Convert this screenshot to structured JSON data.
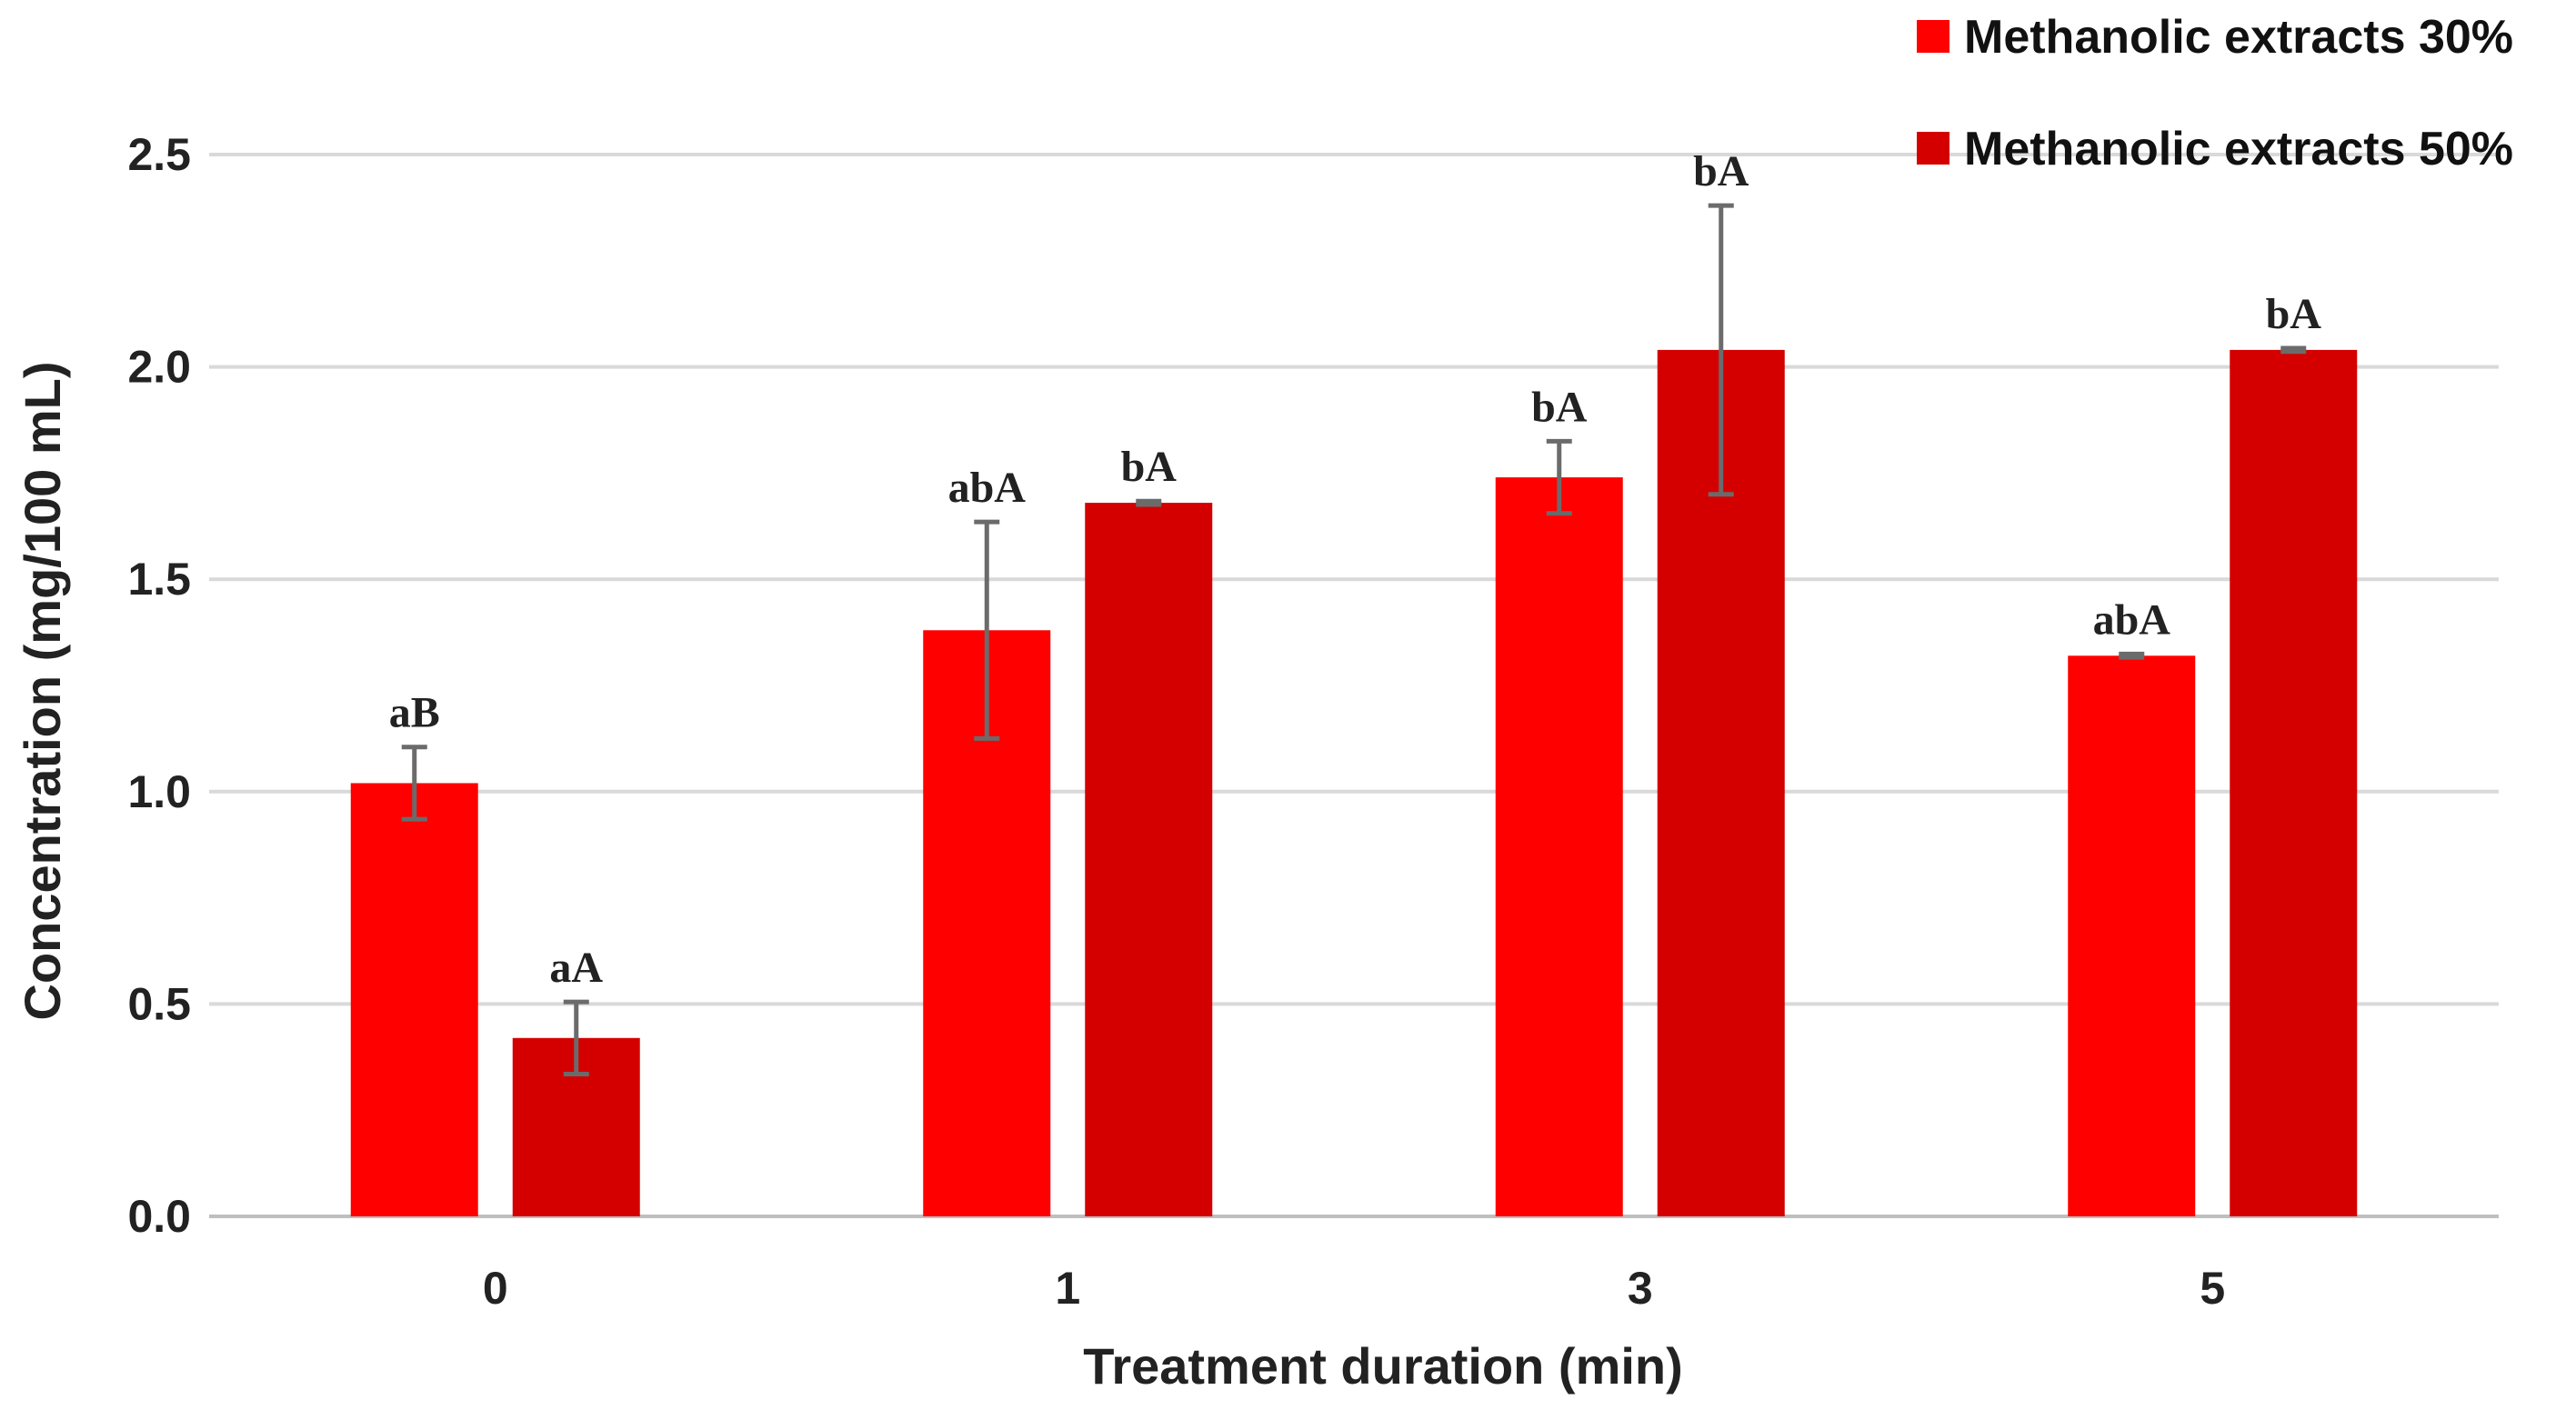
{
  "chart_data": {
    "type": "bar",
    "title": "",
    "xlabel": "Treatment duration (min)",
    "ylabel": "Concentration (mg/100 mL)",
    "categories": [
      "0",
      "1",
      "3",
      "5"
    ],
    "ylim": [
      0,
      2.5
    ],
    "yticks": [
      "0.0",
      "0.5",
      "1.0",
      "1.5",
      "2.0",
      "2.5"
    ],
    "grid": true,
    "legend_position": "top-right",
    "series": [
      {
        "name": "Methanolic extracts 30%",
        "color": "#ff0000",
        "values": [
          1.02,
          1.38,
          1.74,
          1.32
        ],
        "errors": [
          0.085,
          0.255,
          0.085,
          0.004
        ],
        "labels": [
          "aB",
          "abA",
          "bA",
          "abA"
        ]
      },
      {
        "name": "Methanolic extracts 50%",
        "color": "#d40000",
        "values": [
          0.42,
          1.68,
          2.04,
          2.04
        ],
        "errors": [
          0.085,
          0.004,
          0.34,
          0.004
        ],
        "labels": [
          "aA",
          "bA",
          "bA",
          "bA"
        ]
      }
    ]
  }
}
